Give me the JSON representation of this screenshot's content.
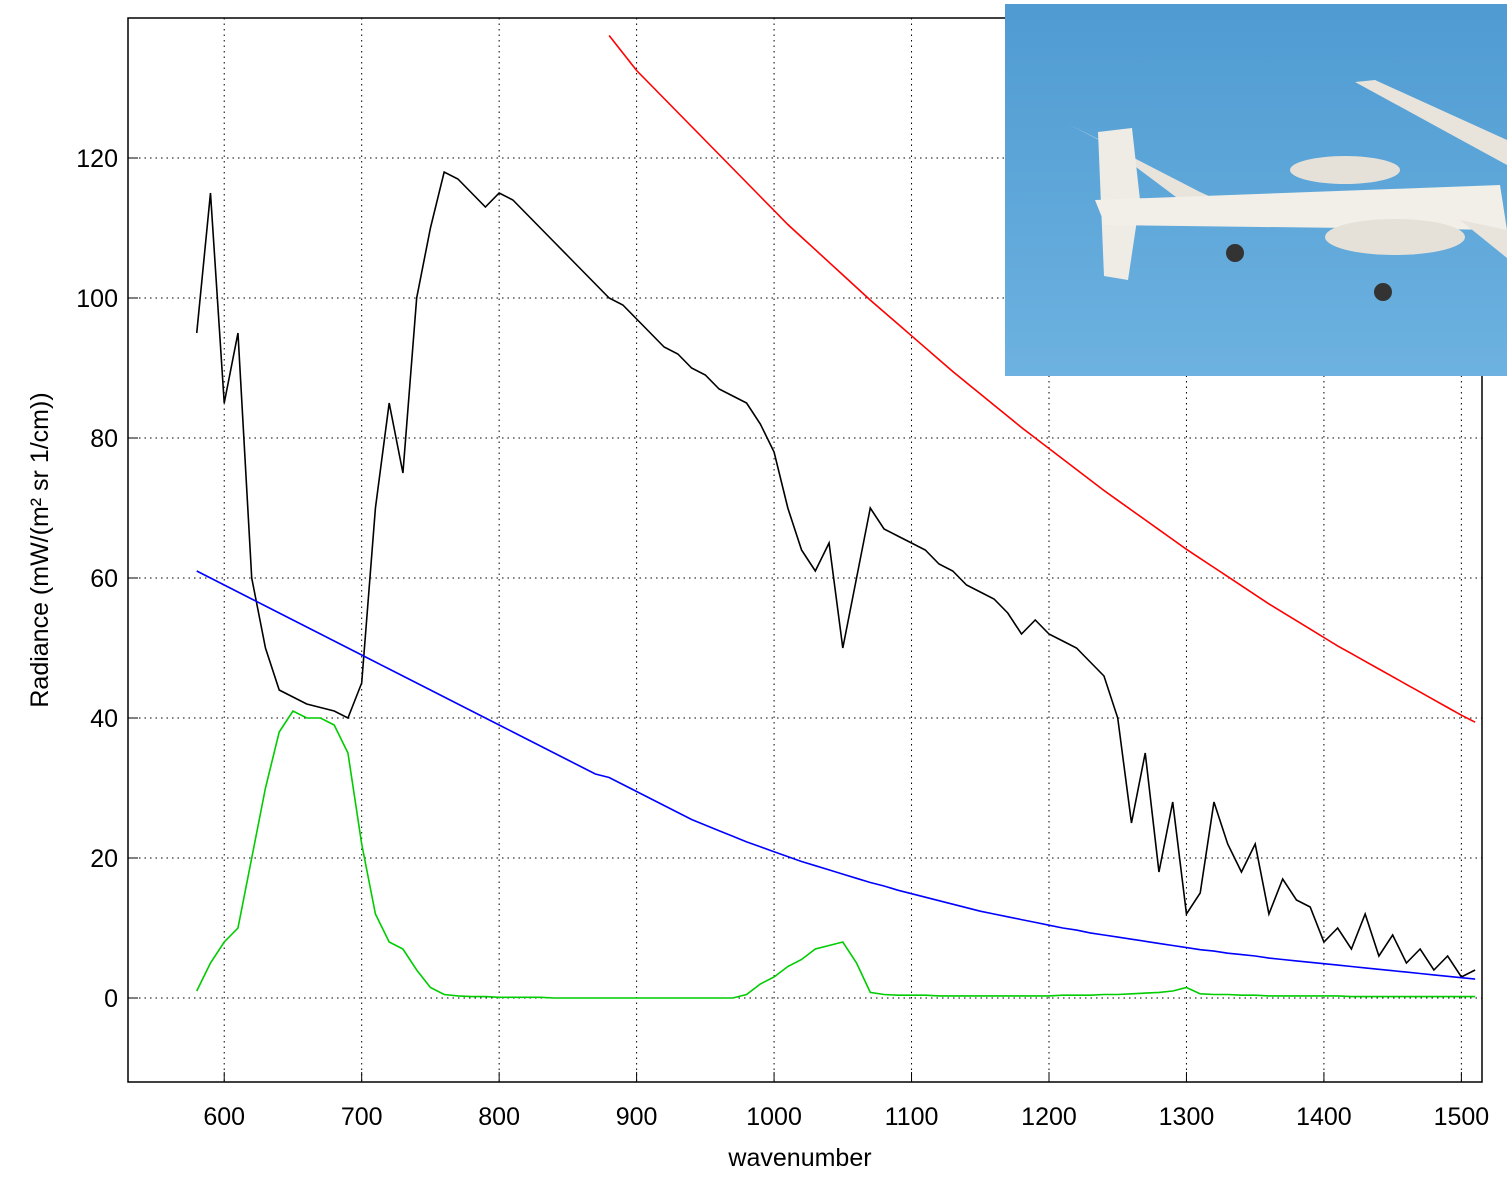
{
  "chart_data": {
    "type": "line",
    "x_label": "wavenumber",
    "y_label": "Radiance (mW/(m² sr 1/cm))",
    "xlim": [
      530,
      1515
    ],
    "ylim": [
      -12,
      140
    ],
    "xticks": [
      600,
      700,
      800,
      900,
      1000,
      1100,
      1200,
      1300,
      1400,
      1500
    ],
    "yticks": [
      0,
      20,
      40,
      60,
      80,
      100,
      120
    ],
    "grid": true,
    "x": [
      580,
      590,
      600,
      610,
      620,
      630,
      640,
      650,
      660,
      670,
      680,
      690,
      700,
      710,
      720,
      730,
      740,
      750,
      760,
      770,
      780,
      790,
      800,
      810,
      820,
      830,
      840,
      850,
      860,
      870,
      880,
      890,
      900,
      910,
      920,
      930,
      940,
      950,
      960,
      970,
      980,
      990,
      1000,
      1010,
      1020,
      1030,
      1040,
      1050,
      1060,
      1070,
      1080,
      1090,
      1100,
      1110,
      1120,
      1130,
      1140,
      1150,
      1160,
      1170,
      1180,
      1190,
      1200,
      1210,
      1220,
      1230,
      1240,
      1250,
      1260,
      1270,
      1280,
      1290,
      1300,
      1310,
      1320,
      1330,
      1340,
      1350,
      1360,
      1370,
      1380,
      1390,
      1400,
      1410,
      1420,
      1430,
      1440,
      1450,
      1460,
      1470,
      1480,
      1490,
      1500,
      1510
    ],
    "series": [
      {
        "color": "#000000",
        "values": [
          95,
          115,
          85,
          95,
          60,
          50,
          44,
          43,
          42,
          41.5,
          41,
          40,
          45,
          70,
          85,
          75,
          100,
          110,
          118,
          117,
          115,
          113,
          115,
          114,
          112,
          110,
          108,
          106,
          104,
          102,
          100,
          99,
          97,
          95,
          93,
          92,
          90,
          89,
          87,
          86,
          85,
          82,
          78,
          70,
          64,
          61,
          65,
          50,
          60,
          70,
          67,
          66,
          65,
          64,
          62,
          61,
          59,
          58,
          57,
          55,
          52,
          54,
          52,
          51,
          50,
          48,
          46,
          40,
          25,
          35,
          18,
          28,
          12,
          15,
          28,
          22,
          18,
          22,
          12,
          17,
          14,
          13,
          8,
          10,
          7,
          12,
          6,
          9,
          5,
          7,
          4,
          6,
          3,
          4
        ]
      },
      {
        "color": "#00cc00",
        "values": [
          1,
          5,
          8,
          10,
          20,
          30,
          38,
          41,
          40,
          40,
          39,
          35,
          22,
          12,
          8,
          7,
          4,
          1.5,
          0.5,
          0.3,
          0.2,
          0.2,
          0.1,
          0.1,
          0.1,
          0.1,
          0,
          0,
          0,
          0,
          0,
          0,
          0,
          0,
          0,
          0,
          0,
          0,
          0,
          0,
          0.5,
          2,
          3,
          4.5,
          5.5,
          7,
          7.5,
          8,
          5,
          0.8,
          0.5,
          0.4,
          0.4,
          0.4,
          0.3,
          0.3,
          0.3,
          0.3,
          0.3,
          0.3,
          0.3,
          0.3,
          0.3,
          0.4,
          0.4,
          0.4,
          0.5,
          0.5,
          0.6,
          0.7,
          0.8,
          1,
          1.5,
          0.6,
          0.5,
          0.5,
          0.4,
          0.4,
          0.3,
          0.3,
          0.3,
          0.3,
          0.3,
          0.3,
          0.2,
          0.2,
          0.2,
          0.2,
          0.2,
          0.2,
          0.2,
          0.2,
          0.2,
          0.2
        ]
      },
      {
        "color": "#0000ff",
        "values": [
          61,
          60,
          59,
          58,
          57,
          56,
          55,
          54,
          53,
          52,
          51,
          50,
          49,
          48,
          47,
          46,
          45,
          44,
          43,
          42,
          41,
          40,
          39,
          38,
          37,
          36,
          35,
          34,
          33,
          32,
          31.5,
          30.5,
          29.5,
          28.5,
          27.5,
          26.5,
          25.5,
          24.7,
          23.9,
          23.1,
          22.3,
          21.6,
          20.9,
          20.2,
          19.5,
          18.9,
          18.3,
          17.7,
          17.1,
          16.5,
          16,
          15.4,
          14.9,
          14.4,
          13.9,
          13.4,
          12.9,
          12.4,
          12,
          11.6,
          11.2,
          10.8,
          10.4,
          10,
          9.7,
          9.3,
          9,
          8.7,
          8.4,
          8.1,
          7.8,
          7.5,
          7.2,
          6.9,
          6.7,
          6.4,
          6.2,
          6,
          5.7,
          5.5,
          5.3,
          5.1,
          4.9,
          4.7,
          4.5,
          4.3,
          4.1,
          3.9,
          3.7,
          3.5,
          3.3,
          3.1,
          2.9,
          2.7
        ]
      },
      {
        "color": "#ff0000",
        "values": [
          null,
          null,
          null,
          null,
          null,
          null,
          null,
          null,
          null,
          null,
          null,
          null,
          null,
          null,
          null,
          null,
          null,
          null,
          null,
          null,
          null,
          null,
          null,
          null,
          null,
          null,
          null,
          null,
          null,
          null,
          137.5,
          135,
          132.5,
          130.5,
          128.5,
          126.5,
          124.5,
          122.5,
          120.5,
          118.5,
          116.5,
          114.5,
          112.5,
          110.5,
          108.7,
          106.9,
          105.1,
          103.3,
          101.5,
          99.7,
          98,
          96.3,
          94.6,
          92.9,
          91.2,
          89.5,
          87.9,
          86.3,
          84.7,
          83.1,
          81.5,
          80,
          78.5,
          77,
          75.5,
          74,
          72.5,
          71.1,
          69.7,
          68.3,
          66.9,
          65.5,
          64.1,
          62.8,
          61.5,
          60.2,
          58.9,
          57.6,
          56.3,
          55.1,
          53.9,
          52.7,
          51.5,
          50.3,
          49.2,
          48.1,
          47,
          45.9,
          44.8,
          43.7,
          42.6,
          41.5,
          40.4,
          39.4
        ]
      }
    ]
  }
}
